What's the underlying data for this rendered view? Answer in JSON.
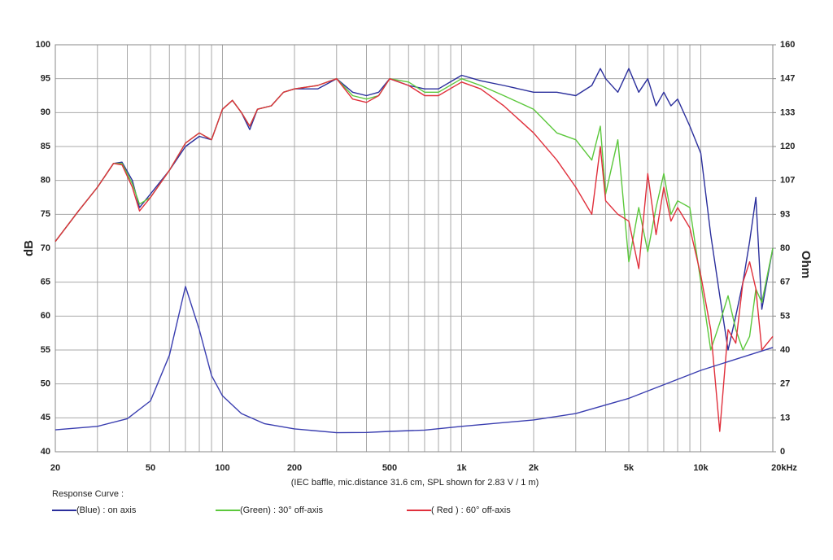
{
  "chart_data": {
    "type": "line",
    "x_scale": "log",
    "grid": true,
    "ylabel": "dB",
    "y2label": "Ohm",
    "xlabel": "(IEC baffle, mic.distance 31.6 cm, SPL shown for 2.83 V / 1 m)",
    "legend_title": "Response Curve :",
    "xlim": [
      20,
      20000
    ],
    "ylim": [
      40,
      100
    ],
    "y2lim": [
      0,
      160
    ],
    "xticks": [
      20,
      50,
      100,
      200,
      500,
      {
        "value": 1000,
        "label": "1k"
      },
      {
        "value": 2000,
        "label": "2k"
      },
      {
        "value": 5000,
        "label": "5k"
      },
      {
        "value": 10000,
        "label": "10k"
      },
      {
        "value": 20000,
        "label": "20kHz"
      }
    ],
    "xminor": [
      30,
      40,
      60,
      70,
      80,
      90,
      300,
      400,
      600,
      700,
      800,
      900,
      3000,
      4000,
      6000,
      7000,
      8000,
      9000
    ],
    "yticks": [
      40,
      45,
      50,
      55,
      60,
      65,
      70,
      75,
      80,
      85,
      90,
      95,
      100
    ],
    "y2ticks": [
      0,
      {
        "value": 13.33,
        "label": "13"
      },
      {
        "value": 26.67,
        "label": "27"
      },
      40,
      {
        "value": 53.33,
        "label": "53"
      },
      {
        "value": 66.67,
        "label": "67"
      },
      80,
      {
        "value": 93.33,
        "label": "93"
      },
      {
        "value": 106.67,
        "label": "107"
      },
      120,
      {
        "value": 133.33,
        "label": "133"
      },
      {
        "value": 146.67,
        "label": "147"
      },
      160
    ],
    "x": [
      20,
      25,
      30,
      35,
      38,
      42,
      45,
      50,
      60,
      70,
      80,
      90,
      100,
      110,
      120,
      130,
      140,
      160,
      180,
      200,
      250,
      300,
      350,
      400,
      450,
      500,
      600,
      700,
      800,
      1000,
      1200,
      1500,
      2000,
      2500,
      3000,
      3500,
      3800,
      4000,
      4500,
      5000,
      5500,
      6000,
      6500,
      7000,
      7500,
      8000,
      9000,
      10000,
      11000,
      12000,
      13000,
      14000,
      15000,
      16000,
      17000,
      18000,
      20000
    ],
    "series": [
      {
        "name": "(Blue)  : on axis",
        "color": "#2b2f9c",
        "values": [
          71,
          75.5,
          79,
          82.5,
          82.7,
          80,
          76,
          78,
          81.5,
          85,
          86.5,
          86,
          90.5,
          91.8,
          90,
          87.5,
          90.5,
          91,
          93,
          93.5,
          93.5,
          95,
          93,
          92.5,
          93,
          95,
          94,
          93.5,
          93.5,
          95.5,
          94.7,
          94,
          93,
          93,
          92.5,
          94,
          96.5,
          95,
          93,
          96.5,
          93,
          95,
          91,
          93,
          91,
          92,
          88,
          84,
          72,
          63,
          55,
          60,
          65,
          71,
          77.5,
          61,
          70
        ]
      },
      {
        "name": "(Green) : 30° off-axis",
        "color": "#5cc83c",
        "values": [
          71,
          75.5,
          79,
          82.5,
          82.5,
          79.5,
          76.5,
          77.5,
          81.5,
          85.5,
          87,
          86,
          90.5,
          91.8,
          90,
          88,
          90.5,
          91,
          93,
          93.5,
          94,
          95,
          92.5,
          92,
          92.5,
          95,
          94.5,
          93,
          93,
          95,
          94,
          92.5,
          90.5,
          87,
          86,
          83,
          88,
          78,
          86,
          68,
          76,
          69.5,
          76,
          81,
          75,
          77,
          76,
          65,
          55,
          59,
          63,
          58,
          55,
          57,
          64,
          62,
          70
        ]
      },
      {
        "name": "( Red ) : 60° off-axis",
        "color": "#e0303c",
        "values": [
          71,
          75.5,
          79,
          82.5,
          82.3,
          79,
          75.5,
          77.5,
          81.5,
          85.5,
          87,
          86,
          90.5,
          91.8,
          90,
          88,
          90.5,
          91,
          93,
          93.5,
          94,
          95,
          92,
          91.5,
          92.5,
          95,
          94,
          92.5,
          92.5,
          94.5,
          93.5,
          91,
          87,
          83,
          79,
          75,
          85,
          77,
          75,
          74,
          67,
          81,
          72,
          79,
          74,
          76,
          73,
          66,
          58,
          43,
          58,
          56,
          65,
          68,
          64,
          55,
          57
        ]
      },
      {
        "name": null,
        "color": "#3a3eb0",
        "axis": "y2",
        "x": [
          20,
          30,
          40,
          50,
          60,
          70,
          80,
          90,
          100,
          120,
          150,
          200,
          300,
          400,
          500,
          700,
          1000,
          2000,
          3000,
          5000,
          10000,
          20000
        ],
        "values": [
          8.6,
          10,
          13,
          20,
          38,
          65,
          48,
          30,
          22,
          15,
          11,
          9,
          7.5,
          7.6,
          8,
          8.5,
          10,
          12.5,
          15,
          21,
          32,
          41
        ]
      }
    ]
  }
}
